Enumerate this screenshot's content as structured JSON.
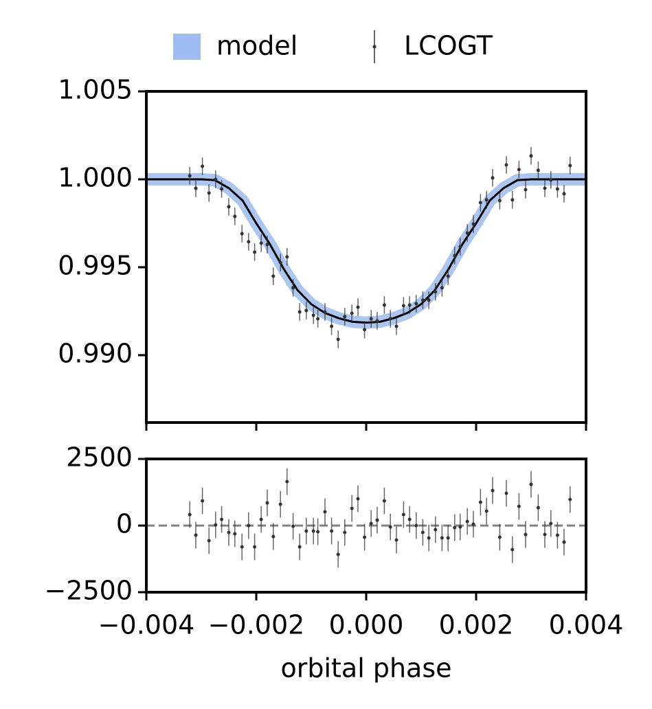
{
  "chart_data": [
    {
      "type": "errorbar",
      "name": "LCOGT",
      "color": "#333333",
      "legend": "upper center",
      "x": [
        -0.00321,
        -0.0031,
        -0.00298,
        -0.00286,
        -0.00274,
        -0.00263,
        -0.0025,
        -0.00239,
        -0.00226,
        -0.00214,
        -0.00203,
        -0.00191,
        -0.0018,
        -0.00169,
        -0.00156,
        -0.00144,
        -0.00133,
        -0.00121,
        -0.00109,
        -0.00096,
        -0.00088,
        -0.00075,
        -0.00063,
        -0.00051,
        -0.00039,
        -0.00026,
        -0.00015,
        -3e-05,
        9e-05,
        0.0002,
        0.00033,
        0.00044,
        0.00055,
        0.00068,
        0.00079,
        0.00091,
        0.00103,
        0.00114,
        0.00126,
        0.00138,
        0.00149,
        0.00161,
        0.00171,
        0.00184,
        0.00195,
        0.00208,
        0.00219,
        0.0023,
        0.00243,
        0.00255,
        0.00266,
        0.00278,
        0.0029,
        0.003,
        0.00313,
        0.00325,
        0.00336,
        0.00348,
        0.0036,
        0.00371
      ],
      "values": [
        1.0002,
        0.99949,
        1.00074,
        0.99922,
        1.0,
        0.99945,
        0.99844,
        0.99789,
        0.99691,
        0.99645,
        0.99586,
        0.99637,
        0.99629,
        0.99449,
        0.99527,
        0.99559,
        0.99383,
        0.99246,
        0.99254,
        0.99227,
        0.99207,
        0.99246,
        0.99164,
        0.9909,
        0.99219,
        0.99238,
        0.99273,
        0.99145,
        0.99207,
        0.99195,
        0.99285,
        0.99207,
        0.99164,
        0.99281,
        0.99285,
        0.99293,
        0.99313,
        0.99313,
        0.9936,
        0.99383,
        0.99449,
        0.99566,
        0.99617,
        0.99695,
        0.99746,
        0.99867,
        0.99883,
        1.00008,
        0.99879,
        1.00082,
        0.99883,
        1.00055,
        0.99941,
        1.00133,
        1.00051,
        0.99949,
        0.99996,
        0.99945,
        0.99918,
        1.00078
      ],
      "yerr": 0.0005,
      "model": {
        "name": "model",
        "color": "#9dbcf0",
        "line_color": "#000000",
        "x": [
          -0.004,
          -0.00375,
          -0.0035,
          -0.00325,
          -0.003,
          -0.00275,
          -0.0025,
          -0.00225,
          -0.002,
          -0.00175,
          -0.0015,
          -0.00125,
          -0.001,
          -0.00075,
          -0.0005,
          -0.00025,
          0,
          0.00025,
          0.0005,
          0.00075,
          0.001,
          0.00125,
          0.0015,
          0.00175,
          0.002,
          0.00225,
          0.0025,
          0.00275,
          0.003,
          0.00325,
          0.0035,
          0.00375,
          0.004
        ],
        "values": [
          1,
          1,
          1,
          1,
          1,
          0.99995,
          0.9995,
          0.9988,
          0.9975,
          0.9963,
          0.9949,
          0.9937,
          0.9929,
          0.9924,
          0.9921,
          0.9919,
          0.99185,
          0.9919,
          0.9921,
          0.9924,
          0.9929,
          0.9937,
          0.9949,
          0.9963,
          0.9975,
          0.9988,
          0.9995,
          0.99995,
          1,
          1,
          1,
          1,
          1
        ]
      },
      "xlim": [
        -0.004,
        0.004
      ],
      "xticks": [
        -0.004,
        -0.002,
        0,
        0.002,
        0.004
      ],
      "ylim": [
        0.98617,
        1.005
      ],
      "yticks": [
        1.005,
        {
          "value": 1,
          "label": "1.000"
        },
        0.995,
        {
          "value": 0.99,
          "label": "0.990"
        }
      ]
    },
    {
      "type": "errorbar",
      "color": "#333333",
      "xlabel": "orbital phase",
      "x": [
        -0.00321,
        -0.0031,
        -0.00298,
        -0.00286,
        -0.00274,
        -0.00263,
        -0.0025,
        -0.00239,
        -0.00226,
        -0.00214,
        -0.00203,
        -0.00191,
        -0.0018,
        -0.00169,
        -0.00156,
        -0.00144,
        -0.00133,
        -0.00121,
        -0.00109,
        -0.00096,
        -0.00088,
        -0.00075,
        -0.00063,
        -0.00051,
        -0.00039,
        -0.00026,
        -0.00015,
        -3e-05,
        9e-05,
        0.0002,
        0.00033,
        0.00044,
        0.00055,
        0.00068,
        0.00079,
        0.00091,
        0.00103,
        0.00114,
        0.00126,
        0.00138,
        0.00149,
        0.00161,
        0.00171,
        0.00184,
        0.00195,
        0.00208,
        0.00219,
        0.0023,
        0.00243,
        0.00255,
        0.00266,
        0.00278,
        0.0029,
        0.003,
        0.00313,
        0.00325,
        0.00336,
        0.00348,
        0.0036,
        0.00371
      ],
      "values": [
        412,
        -361,
        928,
        -567,
        26,
        232,
        -258,
        -309,
        -799,
        0,
        -799,
        232,
        850,
        -412,
        799,
        1649,
        -26,
        -799,
        -206,
        -206,
        -232,
        515,
        -206,
        -1082,
        -258,
        644,
        1005,
        -438,
        77,
        206,
        928,
        -52,
        -541,
        412,
        232,
        0,
        -258,
        -464,
        -155,
        -464,
        -464,
        -77,
        -52,
        155,
        52,
        876,
        541,
        1314,
        -438,
        1211,
        -902,
        722,
        -335,
        1546,
        670,
        -335,
        77,
        -361,
        -618,
        979
      ],
      "yerr": 500,
      "xlim": [
        -0.004,
        0.004
      ],
      "xticks": [
        {
          "value": -0.004,
          "label": "−0.004"
        },
        {
          "value": -0.002,
          "label": "−0.002"
        },
        {
          "value": 0,
          "label": "0.000"
        },
        {
          "value": 0.002,
          "label": "0.002"
        },
        {
          "value": 0.004,
          "label": "0.004"
        }
      ],
      "ylim": [
        -2500,
        2500
      ],
      "yticks": [
        2500,
        0,
        {
          "value": -2500,
          "label": "−2500"
        }
      ]
    }
  ]
}
